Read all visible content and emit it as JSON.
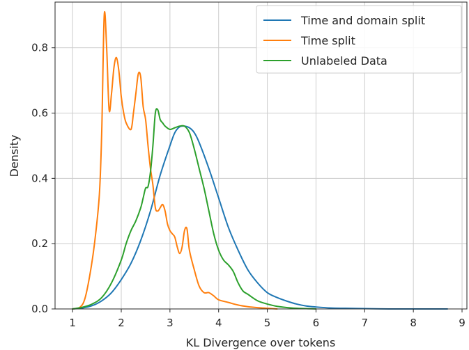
{
  "chart_data": {
    "type": "line",
    "title": "",
    "xlabel": "KL Divergence over tokens",
    "ylabel": "Density",
    "xlim": [
      0.64,
      9.1
    ],
    "ylim": [
      0,
      0.94
    ],
    "xticks": [
      1,
      2,
      3,
      4,
      5,
      6,
      7,
      8,
      9
    ],
    "yticks": [
      0.0,
      0.2,
      0.4,
      0.6,
      0.8
    ],
    "ytick_labels": [
      "0.0",
      "0.2",
      "0.4",
      "0.6",
      "0.8"
    ],
    "grid": true,
    "legend_position": "top-right",
    "series": [
      {
        "name": "Time and domain split",
        "color": "#1f77b4",
        "x": [
          1.0,
          1.2,
          1.4,
          1.6,
          1.8,
          2.0,
          2.2,
          2.4,
          2.6,
          2.8,
          3.0,
          3.1,
          3.2,
          3.3,
          3.4,
          3.5,
          3.6,
          3.8,
          4.0,
          4.2,
          4.4,
          4.6,
          4.8,
          5.0,
          5.2,
          5.4,
          5.6,
          5.8,
          6.0,
          6.3,
          6.6,
          7.0,
          7.5,
          8.0,
          8.7
        ],
        "y": [
          0.0,
          0.003,
          0.01,
          0.025,
          0.05,
          0.09,
          0.14,
          0.21,
          0.3,
          0.41,
          0.5,
          0.54,
          0.558,
          0.56,
          0.555,
          0.54,
          0.51,
          0.43,
          0.34,
          0.25,
          0.18,
          0.12,
          0.08,
          0.05,
          0.035,
          0.024,
          0.015,
          0.009,
          0.006,
          0.003,
          0.002,
          0.001,
          0.0,
          0.0,
          0.0
        ]
      },
      {
        "name": "Time split",
        "color": "#ff7f0e",
        "x": [
          1.0,
          1.15,
          1.25,
          1.35,
          1.45,
          1.55,
          1.6,
          1.65,
          1.7,
          1.75,
          1.8,
          1.85,
          1.9,
          1.95,
          2.0,
          2.05,
          2.1,
          2.2,
          2.25,
          2.3,
          2.35,
          2.4,
          2.45,
          2.5,
          2.55,
          2.6,
          2.65,
          2.7,
          2.75,
          2.8,
          2.85,
          2.9,
          2.95,
          3.0,
          3.05,
          3.1,
          3.15,
          3.2,
          3.25,
          3.3,
          3.35,
          3.4,
          3.5,
          3.6,
          3.7,
          3.8,
          3.9,
          4.0,
          4.2,
          4.4,
          4.6,
          4.8,
          5.0,
          5.2
        ],
        "y": [
          0.0,
          0.005,
          0.03,
          0.1,
          0.2,
          0.35,
          0.55,
          0.9,
          0.8,
          0.61,
          0.66,
          0.74,
          0.77,
          0.73,
          0.65,
          0.6,
          0.57,
          0.55,
          0.6,
          0.66,
          0.72,
          0.71,
          0.62,
          0.58,
          0.5,
          0.43,
          0.38,
          0.31,
          0.3,
          0.31,
          0.32,
          0.3,
          0.26,
          0.24,
          0.23,
          0.22,
          0.19,
          0.17,
          0.19,
          0.24,
          0.245,
          0.18,
          0.12,
          0.07,
          0.05,
          0.05,
          0.04,
          0.028,
          0.02,
          0.012,
          0.007,
          0.004,
          0.002,
          0.0
        ]
      },
      {
        "name": "Unlabeled Data",
        "color": "#2ca02c",
        "x": [
          1.0,
          1.2,
          1.4,
          1.6,
          1.8,
          2.0,
          2.1,
          2.2,
          2.3,
          2.4,
          2.45,
          2.5,
          2.55,
          2.6,
          2.65,
          2.7,
          2.75,
          2.8,
          2.85,
          2.9,
          3.0,
          3.1,
          3.2,
          3.3,
          3.4,
          3.5,
          3.6,
          3.7,
          3.8,
          3.9,
          4.0,
          4.1,
          4.2,
          4.3,
          4.4,
          4.5,
          4.6,
          4.8,
          5.0,
          5.2,
          5.5,
          5.8,
          6.0
        ],
        "y": [
          0.0,
          0.005,
          0.015,
          0.035,
          0.08,
          0.15,
          0.2,
          0.24,
          0.27,
          0.31,
          0.34,
          0.37,
          0.375,
          0.42,
          0.5,
          0.6,
          0.61,
          0.58,
          0.57,
          0.56,
          0.55,
          0.555,
          0.56,
          0.56,
          0.54,
          0.49,
          0.43,
          0.37,
          0.3,
          0.23,
          0.18,
          0.15,
          0.135,
          0.115,
          0.08,
          0.055,
          0.045,
          0.025,
          0.015,
          0.008,
          0.003,
          0.001,
          0.0
        ]
      }
    ]
  }
}
